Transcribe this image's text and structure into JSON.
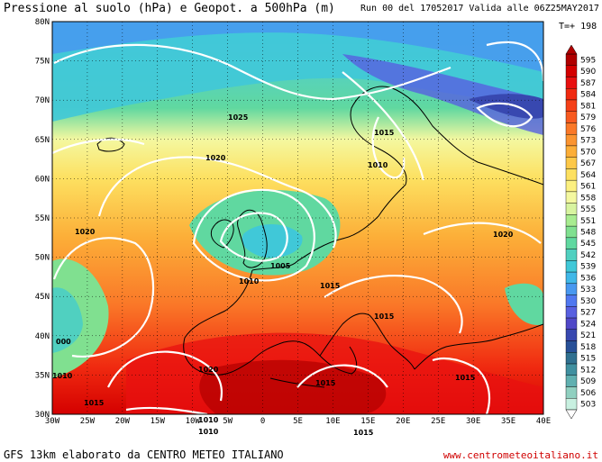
{
  "header": {
    "title": "Pressione al suolo (hPa) e Geopot. a 500hPa (m)",
    "run_info": "Run 00 del 17052017  Valida alle 06Z25MAY2017"
  },
  "forecast_time": "T=+ 198",
  "footer": {
    "credit": "GFS 13km elaborato da CENTRO METEO ITALIANO",
    "website": "www.centrometeoitaliano.it"
  },
  "axes": {
    "lat_labels": [
      "80N",
      "75N",
      "70N",
      "65N",
      "60N",
      "55N",
      "50N",
      "45N",
      "40N",
      "35N",
      "30N"
    ],
    "lon_labels": [
      "30W",
      "25W",
      "20W",
      "15W",
      "10W",
      "5W",
      "0",
      "5E",
      "10E",
      "15E",
      "20E",
      "25E",
      "30E",
      "35E",
      "40E"
    ]
  },
  "isobar_labels": [
    "1025",
    "1015",
    "1020",
    "1010",
    "1020",
    "1005",
    "1010",
    "1015",
    "1015",
    "1020",
    "1015",
    "1015",
    "1015",
    "1010",
    "1010",
    "1010",
    "1015",
    "1020",
    "000"
  ],
  "legend": {
    "values": [
      "595",
      "590",
      "587",
      "584",
      "581",
      "579",
      "576",
      "573",
      "570",
      "567",
      "564",
      "561",
      "558",
      "555",
      "551",
      "548",
      "545",
      "542",
      "539",
      "536",
      "533",
      "530",
      "527",
      "524",
      "521",
      "518",
      "515",
      "512",
      "509",
      "506",
      "503"
    ],
    "colors": [
      "#b00000",
      "#d40000",
      "#e81010",
      "#f02a10",
      "#f54018",
      "#f85a20",
      "#fa7828",
      "#fb9430",
      "#fcae38",
      "#fdc848",
      "#fde060",
      "#fcf080",
      "#f4f8a0",
      "#d8f4a0",
      "#a8ec90",
      "#80e090",
      "#60d8a0",
      "#50d0c0",
      "#40c8d8",
      "#40b8e8",
      "#4898f0",
      "#5078f0",
      "#5860e0",
      "#5048c8",
      "#3848b0",
      "#285098",
      "#307090",
      "#4090a0",
      "#60b0b0",
      "#90d0c0",
      "#c8f0e0"
    ]
  }
}
